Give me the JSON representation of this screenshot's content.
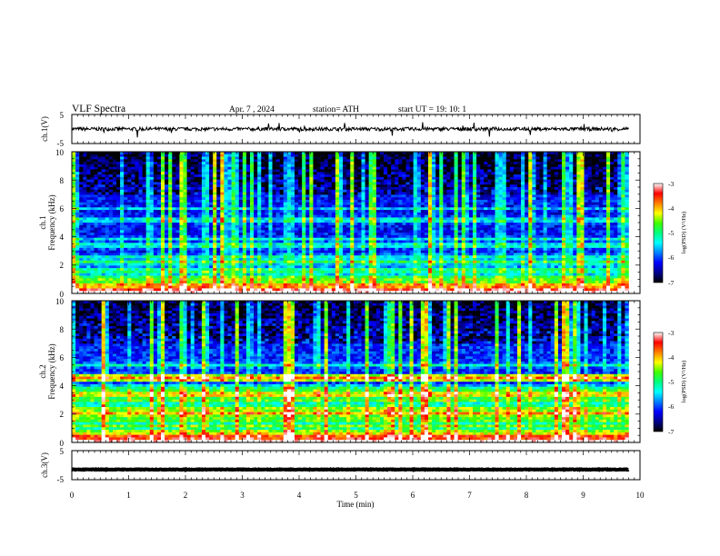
{
  "header": {
    "title": "VLF  Spectra",
    "date": "Apr. 7  , 2024",
    "station": "station= ATH",
    "start": "start  UT  =    19: 10: 1"
  },
  "chart_data": [
    {
      "id": "ch1-waveform",
      "type": "line",
      "ylabel": "ch.1(V)",
      "ylim": [
        -5,
        5
      ],
      "yticks": [
        "5",
        "-5"
      ],
      "xlim": [
        0,
        10
      ],
      "series": [
        {
          "x_range": [
            0,
            9.8
          ],
          "baseline": 0,
          "noise_amplitude": 0.6,
          "spike_max": 2.5
        }
      ]
    },
    {
      "id": "ch1-spectrogram",
      "type": "heatmap",
      "ylabel_top": "ch.1",
      "ylabel": "Frequency (kHz)",
      "ylim": [
        0,
        10
      ],
      "yticks": [
        "0",
        "2",
        "4",
        "6",
        "8",
        "10"
      ],
      "xlim": [
        0,
        10
      ],
      "data_x_range": [
        0,
        9.8
      ],
      "colorbar": {
        "label": "log(PSD) (V²/Hz)",
        "range": [
          -7,
          -3
        ],
        "ticks": [
          "-3",
          "-4",
          "-5",
          "-6",
          "-7"
        ]
      },
      "background_level": -6.2,
      "bands_khz": [
        {
          "f": 0.1,
          "level": -2.9
        },
        {
          "f": 0.3,
          "level": -3.3
        },
        {
          "f": 0.6,
          "level": -4.0
        },
        {
          "f": 0.9,
          "level": -4.6
        },
        {
          "f": 1.2,
          "level": -4.9
        },
        {
          "f": 1.6,
          "level": -5.1
        },
        {
          "f": 2.2,
          "level": -4.9
        },
        {
          "f": 2.6,
          "level": -5.3
        },
        {
          "f": 3.4,
          "level": -5.4
        },
        {
          "f": 3.8,
          "level": -5.5
        },
        {
          "f": 5.2,
          "level": -5.5
        },
        {
          "f": 6.0,
          "level": -5.6
        }
      ]
    },
    {
      "id": "ch2-spectrogram",
      "type": "heatmap",
      "ylabel_top": "ch.2",
      "ylabel": "Frequency (kHz)",
      "ylim": [
        0,
        10
      ],
      "yticks": [
        "0",
        "2",
        "4",
        "6",
        "8",
        "10"
      ],
      "xlim": [
        0,
        10
      ],
      "data_x_range": [
        0,
        9.8
      ],
      "colorbar": {
        "label": "log(PSD) (V²/Hz)",
        "range": [
          -7,
          -3
        ],
        "ticks": [
          "-3",
          "-4",
          "-5",
          "-6",
          "-7"
        ]
      },
      "background_level": -6.1,
      "bands_khz": [
        {
          "f": 0.1,
          "level": -2.9
        },
        {
          "f": 0.4,
          "level": -3.6
        },
        {
          "f": 0.8,
          "level": -4.5
        },
        {
          "f": 1.2,
          "level": -4.6
        },
        {
          "f": 1.6,
          "level": -4.7
        },
        {
          "f": 2.0,
          "level": -3.9
        },
        {
          "f": 2.4,
          "level": -4.5
        },
        {
          "f": 2.9,
          "level": -4.7
        },
        {
          "f": 3.4,
          "level": -4.2
        },
        {
          "f": 3.8,
          "level": -5.0
        },
        {
          "f": 4.6,
          "level": -3.8
        },
        {
          "f": 5.4,
          "level": -5.3
        }
      ]
    },
    {
      "id": "ch3-waveform",
      "type": "line",
      "ylabel": "ch.3(V)",
      "ylim": [
        -5,
        5
      ],
      "yticks": [
        "5",
        "-5"
      ],
      "xlabel": "Time  (min)",
      "xlim": [
        0,
        10
      ],
      "xticks": [
        "0",
        "1",
        "2",
        "3",
        "4",
        "5",
        "6",
        "7",
        "8",
        "9",
        "10"
      ],
      "series": [
        {
          "x_range": [
            0,
            9.8
          ],
          "baseline": -1.5,
          "noise_amplitude": 0.1
        }
      ]
    }
  ],
  "colors": {
    "colormap": [
      "#000000",
      "#00008b",
      "#0000ff",
      "#0080ff",
      "#00ffff",
      "#00ff80",
      "#40ff00",
      "#ffff00",
      "#ff8000",
      "#ff0000",
      "#ffffff"
    ],
    "line": "#000000"
  }
}
